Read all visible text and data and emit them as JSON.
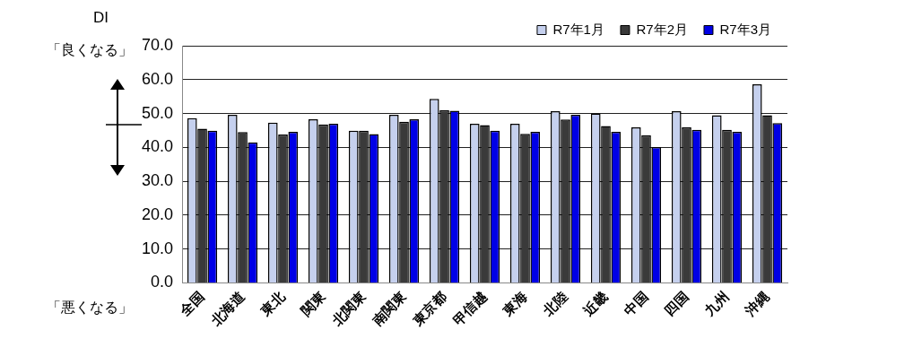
{
  "chart_data": {
    "type": "bar",
    "ylabel": "DI",
    "annotations": [
      "「良くなる」",
      "「悪くなる」"
    ],
    "categories": [
      "全国",
      "北海道",
      "東北",
      "関東",
      "北関東",
      "南関東",
      "東京都",
      "甲信越",
      "東海",
      "北陸",
      "近畿",
      "中国",
      "四国",
      "九州",
      "沖縄"
    ],
    "series": [
      {
        "name": "R7年1月",
        "color": "#c5d0ee",
        "values": [
          48.6,
          49.6,
          47.3,
          48.3,
          44.9,
          49.6,
          54.3,
          47.0,
          47.0,
          50.7,
          50.0,
          45.9,
          50.7,
          49.5,
          58.6
        ]
      },
      {
        "name": "R7年2月",
        "color": "#3a3a3a",
        "values": [
          45.5,
          44.5,
          43.8,
          46.8,
          44.9,
          47.6,
          51.0,
          46.6,
          44.0,
          48.2,
          46.3,
          43.6,
          45.9,
          45.2,
          49.5
        ]
      },
      {
        "name": "R7年3月",
        "color": "#0000e6",
        "values": [
          44.9,
          41.5,
          44.6,
          47.0,
          43.9,
          48.3,
          50.8,
          44.9,
          44.6,
          49.6,
          44.6,
          40.1,
          45.2,
          44.6,
          47.2
        ]
      }
    ],
    "ylim": [
      0,
      70
    ],
    "yticks": [
      {
        "value": 0,
        "label": "0.0"
      },
      {
        "value": 10,
        "label": "10.0"
      },
      {
        "value": 20,
        "label": "20.0"
      },
      {
        "value": 30,
        "label": "30.0"
      },
      {
        "value": 40,
        "label": "40.0"
      },
      {
        "value": 50,
        "label": "50.0"
      },
      {
        "value": 60,
        "label": "60.0"
      },
      {
        "value": 70,
        "label": "70.0"
      }
    ],
    "grid": "y",
    "legend": "top right"
  }
}
